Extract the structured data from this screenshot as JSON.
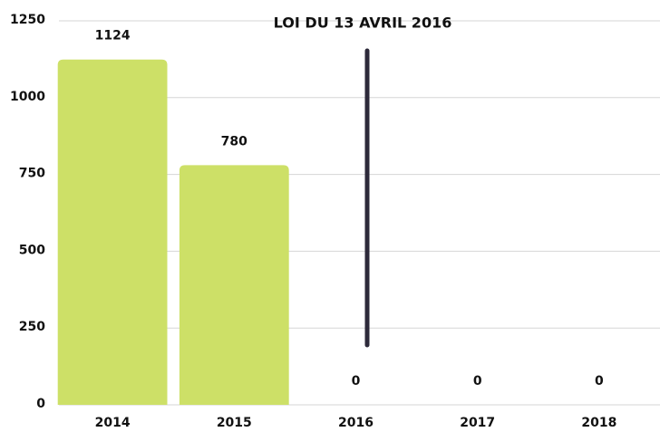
{
  "chart_data": {
    "type": "bar",
    "annotation": "LOI DU 13 AVRIL 2016",
    "categories": [
      "2014",
      "2015",
      "2016",
      "2017",
      "2018"
    ],
    "values": [
      1124,
      780,
      0,
      0,
      0
    ],
    "color": "#cde067",
    "ylim": [
      0,
      1250
    ],
    "yticks": [
      0,
      250,
      500,
      750,
      1000,
      1250
    ],
    "grid": true
  }
}
